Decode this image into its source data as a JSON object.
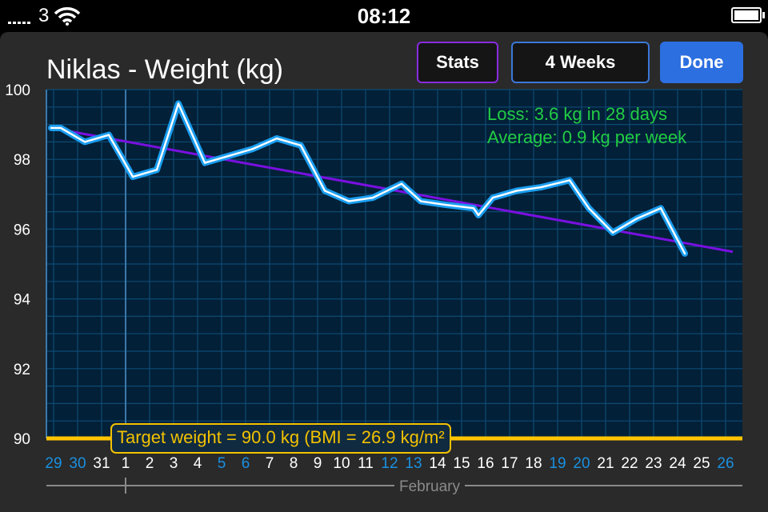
{
  "status_bar": {
    "carrier": "3",
    "time": "08:12",
    "icons": [
      "signal-icon",
      "wifi-icon",
      "battery-icon"
    ]
  },
  "header": {
    "title": "Niklas - Weight (kg)",
    "stats_label": "Stats",
    "range_label": "4 Weeks",
    "done_label": "Done"
  },
  "annotations": {
    "loss": "Loss: 3.6 kg in 28 days",
    "average": "Average: 0.9 kg per week"
  },
  "target": {
    "label": "Target weight = 90.0 kg (BMI = 26.9 kg/m²",
    "value": 90.0
  },
  "colors": {
    "background": "#2a2a2a",
    "plot_background": "#022038",
    "grid": "#0d4a72",
    "weight_line": "#1a9ef0",
    "trend_line": "#7a10e0",
    "target_line": "#ffc400",
    "annotation": "#22cc44",
    "weekend_tick": "#1a90e0",
    "weekday_tick": "#ffffff"
  },
  "chart_data": {
    "type": "line",
    "title": "Niklas - Weight (kg)",
    "xlabel": "February",
    "ylabel": "",
    "ylim": [
      90,
      100
    ],
    "yticks": [
      90,
      92,
      94,
      96,
      98,
      100
    ],
    "categories": [
      "29",
      "30",
      "31",
      "1",
      "2",
      "3",
      "4",
      "5",
      "6",
      "7",
      "8",
      "9",
      "10",
      "11",
      "12",
      "13",
      "14",
      "15",
      "16",
      "17",
      "18",
      "19",
      "20",
      "21",
      "22",
      "23",
      "24",
      "25",
      "26"
    ],
    "weekend_days": [
      "29",
      "30",
      "5",
      "6",
      "12",
      "13",
      "19",
      "20",
      "26"
    ],
    "x_index_range": [
      -0.3,
      28.7
    ],
    "month_start_index": 3,
    "series": [
      {
        "name": "Weight",
        "x": [
          -0.1,
          0.3,
          1.3,
          2.3,
          3.3,
          4.3,
          5.2,
          6.3,
          7.3,
          8.3,
          9.3,
          10.3,
          11.3,
          12.3,
          13.3,
          14.5,
          15.3,
          16.3,
          17.5,
          17.7,
          18.3,
          19.3,
          20.3,
          21.5,
          22.3,
          23.3,
          24.3,
          25.3,
          26.3
        ],
        "y": [
          98.9,
          98.9,
          98.5,
          98.7,
          97.5,
          97.7,
          99.6,
          97.9,
          98.1,
          98.3,
          98.6,
          98.4,
          97.1,
          96.8,
          96.9,
          97.3,
          96.8,
          96.7,
          96.6,
          96.4,
          96.9,
          97.1,
          97.2,
          97.4,
          96.6,
          95.9,
          96.3,
          96.6,
          95.3
        ]
      },
      {
        "name": "Trend",
        "x": [
          0.3,
          28.3
        ],
        "y": [
          98.85,
          95.35
        ]
      }
    ]
  }
}
